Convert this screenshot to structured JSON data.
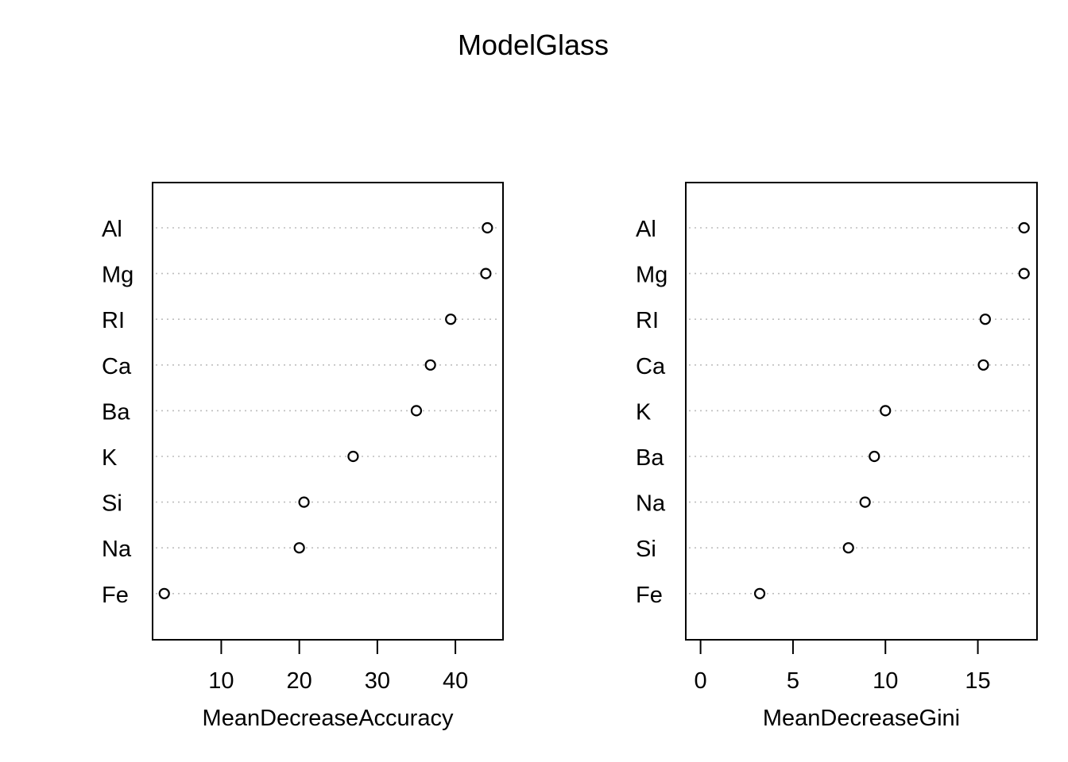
{
  "title": "ModelGlass",
  "chart_data": [
    {
      "type": "scatter",
      "style": "dotchart",
      "xlabel": "MeanDecreaseAccuracy",
      "ylabel": "",
      "xlim": [
        1.2,
        46.1
      ],
      "xticks": [
        10,
        20,
        30,
        40
      ],
      "grid": "dotted-horizontal",
      "categories": [
        "Al",
        "Mg",
        "RI",
        "Ca",
        "Ba",
        "K",
        "Si",
        "Na",
        "Fe"
      ],
      "values": [
        44.1,
        43.9,
        39.4,
        36.8,
        35.0,
        26.9,
        20.6,
        20.0,
        2.7
      ]
    },
    {
      "type": "scatter",
      "style": "dotchart",
      "xlabel": "MeanDecreaseGini",
      "ylabel": "",
      "xlim": [
        -0.8,
        18.2
      ],
      "xticks": [
        0,
        5,
        10,
        15
      ],
      "grid": "dotted-horizontal",
      "categories": [
        "Al",
        "Mg",
        "RI",
        "Ca",
        "K",
        "Ba",
        "Na",
        "Si",
        "Fe"
      ],
      "values": [
        17.5,
        17.5,
        15.4,
        15.3,
        10.0,
        9.4,
        8.9,
        8.0,
        3.2
      ]
    }
  ]
}
